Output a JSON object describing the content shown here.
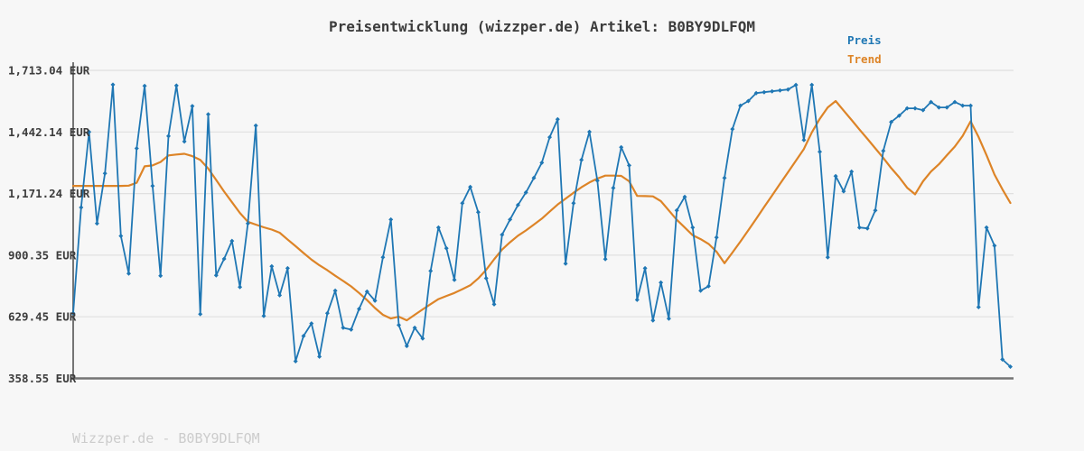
{
  "title": "Preisentwicklung (wizzper.de) Artikel: B0BY9DLFQM",
  "watermark": "Wizzper.de - B0BY9DLFQM",
  "legend": [
    {
      "label": "Preis",
      "color": "#1f77b4"
    },
    {
      "label": "Trend",
      "color": "#dd8427"
    }
  ],
  "colors": {
    "background": "#f7f7f7",
    "grid": "#e0e0e0",
    "spine": "#757575",
    "price": "#1f77b4",
    "trend": "#dd8427",
    "text": "#3c3c3c",
    "watermark": "#cccccc"
  },
  "chart_data": {
    "type": "line",
    "title": "Preisentwicklung (wizzper.de) Artikel: B0BY9DLFQM",
    "xlabel": "",
    "ylabel": "",
    "x_tick_labels": [],
    "currency": "EUR",
    "grid": true,
    "legend_position": "top-right",
    "ylim": [
      358.55,
      1713.04
    ],
    "y_ticks": [
      {
        "label": "1,713.04 EUR",
        "value": 1713.04
      },
      {
        "label": "1,442.14 EUR",
        "value": 1442.14
      },
      {
        "label": "1,171.24 EUR",
        "value": 1171.24
      },
      {
        "label": "900.35 EUR",
        "value": 900.35
      },
      {
        "label": "629.45 EUR",
        "value": 629.45
      },
      {
        "label": "358.55 EUR",
        "value": 358.55
      }
    ],
    "series": [
      {
        "name": "Preis",
        "color": "#1f77b4",
        "marker": "diamond",
        "values": [
          645,
          1110,
          1442,
          1040,
          1260,
          1650,
          985,
          820,
          1370,
          1645,
          1205,
          810,
          1424,
          1646,
          1400,
          1556,
          641,
          1520,
          812,
          884,
          963,
          760,
          1040,
          1470,
          633,
          851,
          724,
          843,
          434,
          545,
          600,
          454,
          645,
          744,
          581,
          573,
          664,
          740,
          700,
          891,
          1057,
          593,
          501,
          581,
          534,
          831,
          1022,
          931,
          792,
          1129,
          1200,
          1089,
          799,
          684,
          990,
          1057,
          1121,
          1176,
          1240,
          1307,
          1419,
          1498,
          863,
          1129,
          1319,
          1443,
          1228,
          883,
          1196,
          1375,
          1295,
          704,
          843,
          613,
          780,
          621,
          1097,
          1157,
          1022,
          744,
          764,
          978,
          1240,
          1455,
          1558,
          1578,
          1613,
          1617,
          1621,
          1625,
          1629,
          1649,
          1407,
          1649,
          1355,
          891,
          1248,
          1181,
          1268,
          1022,
          1018,
          1097,
          1359,
          1486,
          1514,
          1546,
          1546,
          1538,
          1574,
          1550,
          1550,
          1574,
          1558,
          1558,
          672,
          1022,
          942,
          442,
          410
        ]
      },
      {
        "name": "Trend",
        "color": "#dd8427",
        "marker": "none",
        "values": [
          1205,
          1205,
          1205,
          1205,
          1205,
          1205,
          1205,
          1206,
          1219,
          1291,
          1295,
          1310,
          1339,
          1343,
          1346,
          1336,
          1319,
          1281,
          1231,
          1180,
          1133,
          1086,
          1047,
          1035,
          1023,
          1013,
          999,
          969,
          940,
          910,
          881,
          856,
          834,
          810,
          787,
          763,
          734,
          703,
          668,
          638,
          622,
          630,
          614,
          638,
          662,
          685,
          707,
          721,
          734,
          751,
          768,
          798,
          836,
          882,
          925,
          957,
          986,
          1009,
          1035,
          1061,
          1092,
          1123,
          1149,
          1175,
          1199,
          1220,
          1237,
          1250,
          1250,
          1249,
          1225,
          1161,
          1160,
          1159,
          1138,
          1097,
          1056,
          1022,
          988,
          971,
          950,
          916,
          865,
          912,
          960,
          1010,
          1060,
          1112,
          1163,
          1214,
          1265,
          1316,
          1367,
          1440,
          1500,
          1550,
          1578,
          1536,
          1495,
          1453,
          1412,
          1370,
          1328,
          1283,
          1243,
          1197,
          1168,
          1225,
          1268,
          1300,
          1340,
          1378,
          1425,
          1489,
          1420,
          1340,
          1255,
          1190,
          1130
        ]
      }
    ]
  }
}
